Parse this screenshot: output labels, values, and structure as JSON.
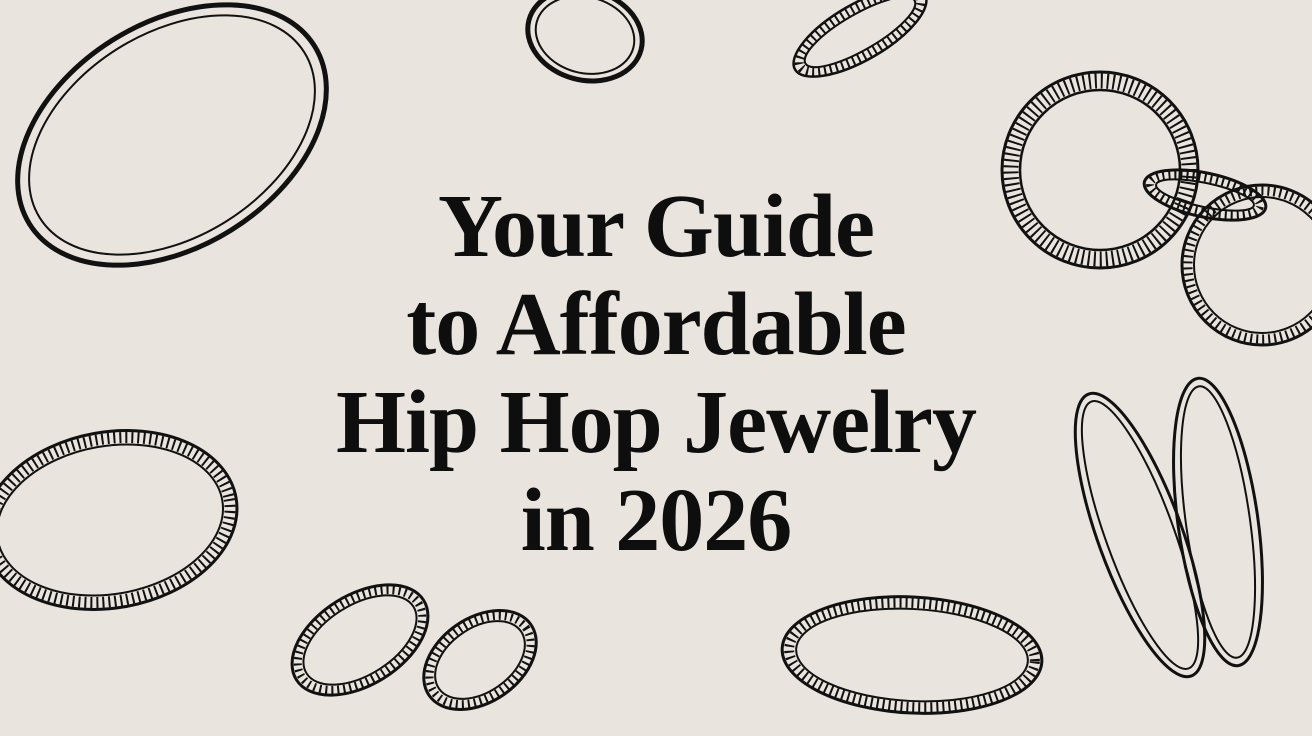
{
  "hero": {
    "title_lines": [
      "Your Guide",
      "to Affordable",
      "Hip Hop Jewelry",
      "in 2026"
    ]
  },
  "colors": {
    "background": "#e9e4de",
    "ink": "#111111"
  },
  "decoration": "ring-icon"
}
